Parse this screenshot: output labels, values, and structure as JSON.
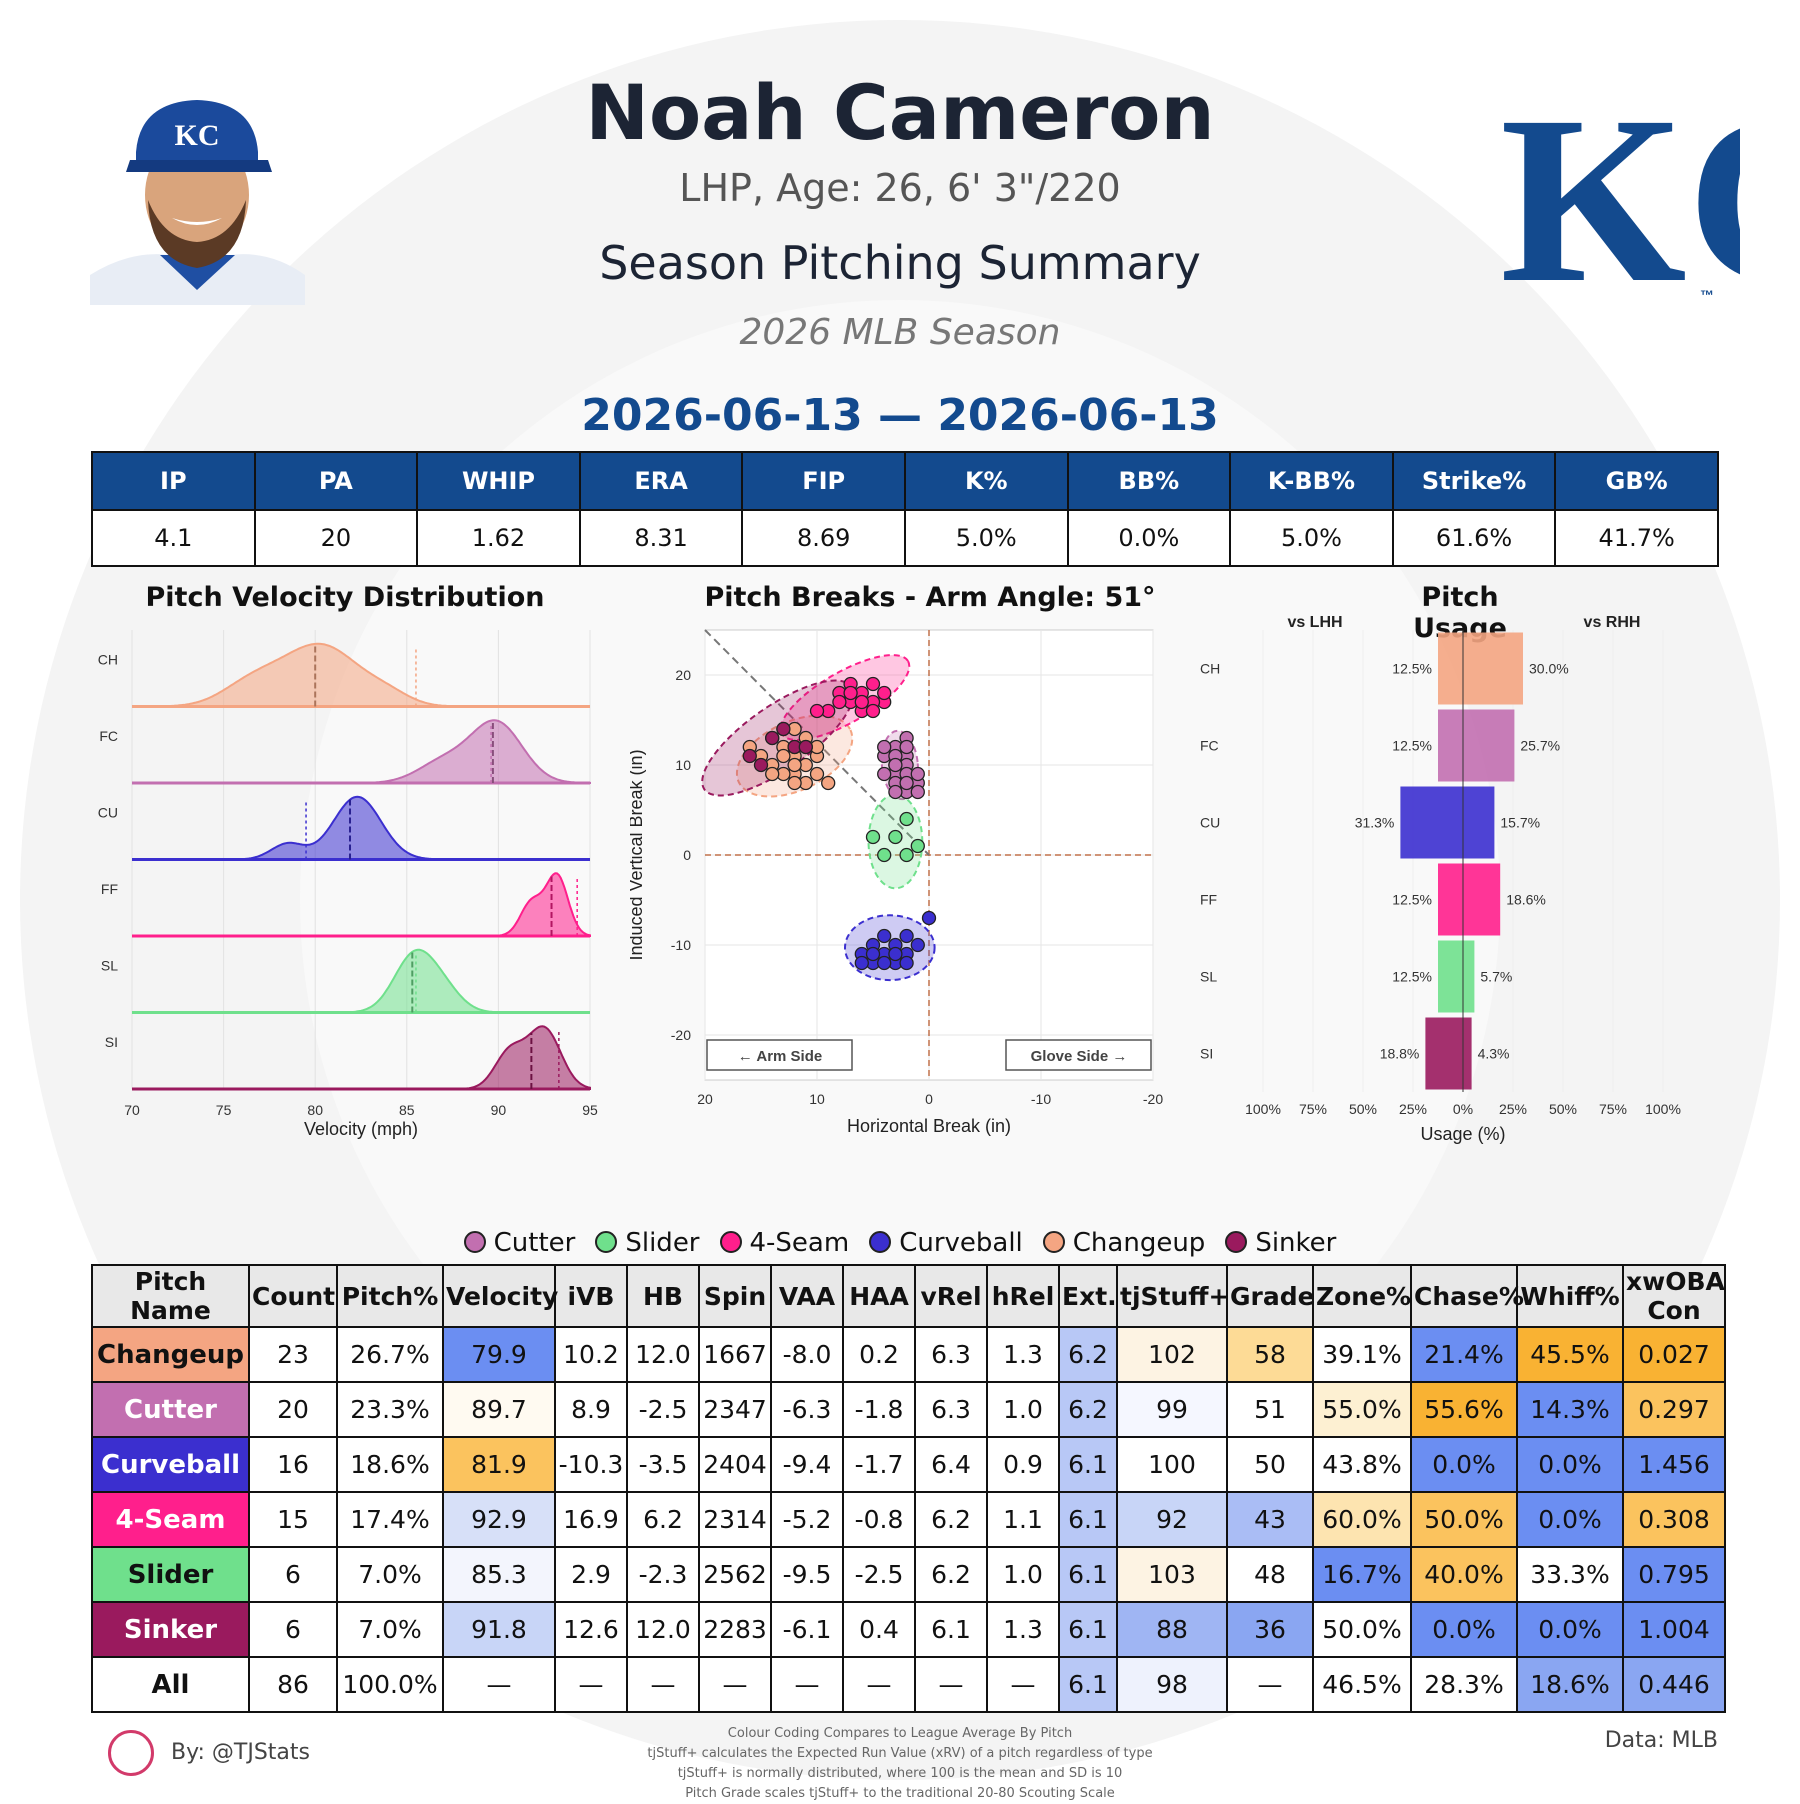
{
  "header": {
    "name": "Noah Cameron",
    "bio": "LHP, Age: 26, 6' 3\"/220",
    "subtitle": "Season Pitching Summary",
    "season": "2026 MLB Season",
    "date_range": "2026-06-13 — 2026-06-13",
    "team_logo": "KC",
    "team_logo_mark": "™",
    "team_color": "#134a8e"
  },
  "summary": {
    "headers": [
      "IP",
      "PA",
      "WHIP",
      "ERA",
      "FIP",
      "K%",
      "BB%",
      "K-BB%",
      "Strike%",
      "GB%"
    ],
    "values": [
      "4.1",
      "20",
      "1.62",
      "8.31",
      "8.69",
      "5.0%",
      "0.0%",
      "5.0%",
      "61.6%",
      "41.7%"
    ]
  },
  "pitch_colors": {
    "CH": "#f4a582",
    "FC": "#c26fb0",
    "CU": "#3b2fcf",
    "FF": "#ff1f8c",
    "SL": "#6fe08c",
    "SI": "#9a1a5e"
  },
  "chart_data": [
    {
      "type": "area",
      "title": "Pitch Velocity Distribution",
      "xlabel": "Velocity (mph)",
      "xlim": [
        70,
        95
      ],
      "xticks": [
        "70",
        "75",
        "80",
        "85",
        "90",
        "95"
      ],
      "series": [
        {
          "name": "CH",
          "mean": 80.0,
          "league_mean": 85.5,
          "peaks": [
            [
              76.5,
              0.35,
              1.6
            ],
            [
              80.3,
              1.0,
              2.1
            ],
            [
              84.0,
              0.15,
              1.2
            ]
          ]
        },
        {
          "name": "FC",
          "mean": 89.7,
          "league_mean": 89.6,
          "peaks": [
            [
              87.0,
              0.35,
              1.4
            ],
            [
              89.9,
              1.0,
              1.4
            ]
          ]
        },
        {
          "name": "CU",
          "mean": 81.9,
          "league_mean": 79.5,
          "peaks": [
            [
              78.5,
              0.25,
              0.9
            ],
            [
              82.3,
              1.0,
              1.3
            ]
          ]
        },
        {
          "name": "FF",
          "mean": 92.9,
          "league_mean": 94.3,
          "peaks": [
            [
              91.8,
              0.55,
              0.6
            ],
            [
              93.2,
              1.0,
              0.6
            ]
          ]
        },
        {
          "name": "SL",
          "mean": 85.3,
          "league_mean": 85.5,
          "peaks": [
            [
              85.4,
              1.0,
              1.1
            ],
            [
              87.0,
              0.35,
              1.0
            ]
          ]
        },
        {
          "name": "SI",
          "mean": 91.8,
          "league_mean": 93.3,
          "peaks": [
            [
              90.6,
              0.6,
              0.8
            ],
            [
              92.5,
              1.0,
              0.9
            ]
          ]
        }
      ]
    },
    {
      "type": "scatter",
      "title": "Pitch Breaks - Arm Angle: 51°",
      "xlabel": "Horizontal Break (in)",
      "ylabel": "Induced Vertical Break (in)",
      "xlim": [
        20,
        -20
      ],
      "ylim": [
        -25,
        25
      ],
      "xticks": [
        "20",
        "10",
        "0",
        "-10",
        "-20"
      ],
      "yticks": [
        "20",
        "10",
        "0",
        "-10",
        "-20"
      ],
      "arm_side_label": "← Arm Side",
      "glove_side_label": "Glove Side →",
      "series": [
        {
          "name": "CH",
          "ellipse": [
            12,
            11,
            5.5,
            3.8,
            -25
          ],
          "points": [
            [
              13,
              12
            ],
            [
              12,
              11
            ],
            [
              11,
              13
            ],
            [
              14,
              10
            ],
            [
              10,
              11
            ],
            [
              12,
              9
            ],
            [
              13,
              14
            ],
            [
              11,
              10
            ],
            [
              15,
              11
            ],
            [
              12,
              12
            ],
            [
              10,
              9
            ],
            [
              14,
              13
            ],
            [
              11,
              8
            ],
            [
              13,
              9
            ],
            [
              12,
              10
            ],
            [
              16,
              12
            ],
            [
              10,
              12
            ],
            [
              9,
              8
            ],
            [
              13,
              11
            ],
            [
              12,
              14
            ],
            [
              11,
              12
            ],
            [
              14,
              9
            ],
            [
              12,
              8
            ]
          ]
        },
        {
          "name": "FC",
          "ellipse": [
            2.6,
            10,
            1.6,
            3.8,
            -5
          ],
          "points": [
            [
              2,
              13
            ],
            [
              3,
              12
            ],
            [
              2,
              11
            ],
            [
              3,
              10
            ],
            [
              2,
              10
            ],
            [
              3,
              9
            ],
            [
              2,
              9
            ],
            [
              1,
              8
            ],
            [
              3,
              8
            ],
            [
              2,
              7
            ],
            [
              4,
              11
            ],
            [
              3,
              11
            ],
            [
              2,
              12
            ],
            [
              1,
              9
            ],
            [
              3,
              7
            ],
            [
              4,
              9
            ],
            [
              2,
              8
            ],
            [
              3,
              10
            ],
            [
              4,
              12
            ],
            [
              1,
              7
            ]
          ]
        },
        {
          "name": "CU",
          "ellipse": [
            3.5,
            -10.3,
            4.0,
            3.6,
            0
          ],
          "points": [
            [
              0,
              -7
            ],
            [
              2,
              -9
            ],
            [
              3,
              -10
            ],
            [
              4,
              -11
            ],
            [
              5,
              -10
            ],
            [
              6,
              -11
            ],
            [
              3,
              -12
            ],
            [
              2,
              -11
            ],
            [
              4,
              -9
            ],
            [
              5,
              -12
            ],
            [
              6,
              -12
            ],
            [
              1,
              -10
            ],
            [
              3,
              -11
            ],
            [
              4,
              -12
            ],
            [
              2,
              -12
            ],
            [
              5,
              -11
            ]
          ]
        },
        {
          "name": "FF",
          "ellipse": [
            7.5,
            17.5,
            6.5,
            2.8,
            -30
          ],
          "points": [
            [
              6,
              18
            ],
            [
              7,
              17
            ],
            [
              5,
              19
            ],
            [
              8,
              18
            ],
            [
              4,
              17
            ],
            [
              6,
              16
            ],
            [
              9,
              16
            ],
            [
              5,
              17
            ],
            [
              7,
              19
            ],
            [
              4,
              18
            ],
            [
              8,
              17
            ],
            [
              6,
              17
            ],
            [
              10,
              16
            ],
            [
              5,
              16
            ],
            [
              7,
              18
            ]
          ]
        },
        {
          "name": "SL",
          "ellipse": [
            3,
            1.5,
            2.4,
            5.2,
            0
          ],
          "points": [
            [
              2,
              4
            ],
            [
              3,
              2
            ],
            [
              1,
              1
            ],
            [
              4,
              0
            ],
            [
              5,
              2
            ],
            [
              2,
              0
            ]
          ]
        },
        {
          "name": "SI",
          "ellipse": [
            13.5,
            13,
            8,
            3.5,
            -35
          ],
          "points": [
            [
              16,
              11
            ],
            [
              14,
              13
            ],
            [
              12,
              12
            ],
            [
              15,
              10
            ],
            [
              13,
              14
            ],
            [
              11,
              12
            ]
          ]
        }
      ]
    },
    {
      "type": "bar",
      "title": "Pitch Usage",
      "xlabel": "Usage (%)",
      "left_label": "vs LHH",
      "right_label": "vs RHH",
      "categories": [
        "CH",
        "FC",
        "CU",
        "FF",
        "SL",
        "SI"
      ],
      "xticks": [
        "100%",
        "75%",
        "50%",
        "25%",
        "0%",
        "25%",
        "50%",
        "75%",
        "100%"
      ],
      "series": [
        {
          "name": "vs LHH",
          "values": [
            12.5,
            12.5,
            31.3,
            12.5,
            12.5,
            18.8
          ],
          "labels": [
            "12.5%",
            "12.5%",
            "31.3%",
            "12.5%",
            "12.5%",
            "18.8%"
          ]
        },
        {
          "name": "vs RHH",
          "values": [
            30.0,
            25.7,
            15.7,
            18.6,
            5.7,
            4.3
          ],
          "labels": [
            "30.0%",
            "25.7%",
            "15.7%",
            "18.6%",
            "5.7%",
            "4.3%"
          ]
        }
      ]
    },
    {
      "type": "table",
      "columns": [
        "Pitch Name",
        "Count",
        "Pitch%",
        "Velocity",
        "iVB",
        "HB",
        "Spin",
        "VAA",
        "HAA",
        "vRel",
        "hRel",
        "Ext.",
        "tjStuff+",
        "Grade",
        "Zone%",
        "Chase%",
        "Whiff%",
        "xwOBA Con"
      ],
      "rows": [
        {
          "name": "Changeup",
          "cells": [
            "23",
            "26.7%",
            "79.9",
            "10.2",
            "12.0",
            "1667",
            "-8.0",
            "0.2",
            "6.3",
            "1.3",
            "6.2",
            "102",
            "58",
            "39.1%",
            "21.4%",
            "45.5%",
            "0.027"
          ],
          "bg": [
            "#ffffff",
            "#ffffff",
            "#6b8ef2",
            "#ffffff",
            "#ffffff",
            "#ffffff",
            "#ffffff",
            "#ffffff",
            "#ffffff",
            "#ffffff",
            "#b8c8f6",
            "#fdf3e3",
            "#fddb96",
            "#ffffff",
            "#6b8ef2",
            "#f9b233",
            "#f9b233"
          ]
        },
        {
          "name": "Cutter",
          "cells": [
            "20",
            "23.3%",
            "89.7",
            "8.9",
            "-2.5",
            "2347",
            "-6.3",
            "-1.8",
            "6.3",
            "1.0",
            "6.2",
            "99",
            "51",
            "55.0%",
            "55.6%",
            "14.3%",
            "0.297"
          ],
          "bg": [
            "#ffffff",
            "#ffffff",
            "#fffaf1",
            "#ffffff",
            "#ffffff",
            "#ffffff",
            "#ffffff",
            "#ffffff",
            "#ffffff",
            "#ffffff",
            "#b8c8f6",
            "#f5f7ff",
            "#ffffff",
            "#fdf0d2",
            "#f9b233",
            "#6b8ef2",
            "#fbc35e"
          ]
        },
        {
          "name": "Curveball",
          "cells": [
            "16",
            "18.6%",
            "81.9",
            "-10.3",
            "-3.5",
            "2404",
            "-9.4",
            "-1.7",
            "6.4",
            "0.9",
            "6.1",
            "100",
            "50",
            "43.8%",
            "0.0%",
            "0.0%",
            "1.456"
          ],
          "bg": [
            "#ffffff",
            "#ffffff",
            "#fbc35e",
            "#ffffff",
            "#ffffff",
            "#ffffff",
            "#ffffff",
            "#ffffff",
            "#ffffff",
            "#ffffff",
            "#b8c8f6",
            "#ffffff",
            "#ffffff",
            "#ffffff",
            "#6b8ef2",
            "#6b8ef2",
            "#6b8ef2"
          ]
        },
        {
          "name": "4-Seam",
          "cells": [
            "15",
            "17.4%",
            "92.9",
            "16.9",
            "6.2",
            "2314",
            "-5.2",
            "-0.8",
            "6.2",
            "1.1",
            "6.1",
            "92",
            "43",
            "60.0%",
            "50.0%",
            "0.0%",
            "0.308"
          ],
          "bg": [
            "#ffffff",
            "#ffffff",
            "#d7e0f8",
            "#ffffff",
            "#ffffff",
            "#ffffff",
            "#ffffff",
            "#ffffff",
            "#ffffff",
            "#ffffff",
            "#b8c8f6",
            "#c8d5f7",
            "#aabdf5",
            "#fde4b0",
            "#fbc35e",
            "#6b8ef2",
            "#fbc35e"
          ]
        },
        {
          "name": "Slider",
          "cells": [
            "6",
            "7.0%",
            "85.3",
            "2.9",
            "-2.3",
            "2562",
            "-9.5",
            "-2.5",
            "6.2",
            "1.0",
            "6.1",
            "103",
            "48",
            "16.7%",
            "40.0%",
            "33.3%",
            "0.795"
          ],
          "bg": [
            "#ffffff",
            "#ffffff",
            "#f3f5fd",
            "#ffffff",
            "#ffffff",
            "#ffffff",
            "#ffffff",
            "#ffffff",
            "#ffffff",
            "#ffffff",
            "#b8c8f6",
            "#fdf3e3",
            "#ffffff",
            "#6b8ef2",
            "#fbc35e",
            "#ffffff",
            "#6b8ef2"
          ]
        },
        {
          "name": "Sinker",
          "cells": [
            "6",
            "7.0%",
            "91.8",
            "12.6",
            "12.0",
            "2283",
            "-6.1",
            "0.4",
            "6.1",
            "1.3",
            "6.1",
            "88",
            "36",
            "50.0%",
            "0.0%",
            "0.0%",
            "1.004"
          ],
          "bg": [
            "#ffffff",
            "#ffffff",
            "#c8d5f7",
            "#ffffff",
            "#ffffff",
            "#ffffff",
            "#ffffff",
            "#ffffff",
            "#ffffff",
            "#ffffff",
            "#b8c8f6",
            "#9fb5f3",
            "#8aa6f2",
            "#ffffff",
            "#6b8ef2",
            "#6b8ef2",
            "#6b8ef2"
          ]
        },
        {
          "name": "All",
          "cells": [
            "86",
            "100.0%",
            "—",
            "—",
            "—",
            "—",
            "—",
            "—",
            "—",
            "—",
            "6.1",
            "98",
            "—",
            "46.5%",
            "28.3%",
            "18.6%",
            "0.446"
          ],
          "bg": [
            "#ffffff",
            "#ffffff",
            "#ffffff",
            "#ffffff",
            "#ffffff",
            "#ffffff",
            "#ffffff",
            "#ffffff",
            "#ffffff",
            "#ffffff",
            "#b8c8f6",
            "#eef2fd",
            "#ffffff",
            "#ffffff",
            "#ffffff",
            "#8aa6f2",
            "#8aa6f2"
          ]
        }
      ],
      "name_styles": {
        "Changeup": {
          "bg": "#f4a582",
          "fg": "#111111"
        },
        "Cutter": {
          "bg": "#c26fb0",
          "fg": "#ffffff"
        },
        "Curveball": {
          "bg": "#3b2fcf",
          "fg": "#ffffff"
        },
        "4-Seam": {
          "bg": "#ff1f8c",
          "fg": "#ffffff"
        },
        "Slider": {
          "bg": "#6fe08c",
          "fg": "#111111"
        },
        "Sinker": {
          "bg": "#9a1a5e",
          "fg": "#ffffff"
        },
        "All": {
          "bg": "#ffffff",
          "fg": "#111111"
        }
      }
    }
  ],
  "legend": [
    {
      "label": "Cutter",
      "color": "#c26fb0"
    },
    {
      "label": "Slider",
      "color": "#6fe08c"
    },
    {
      "label": "4-Seam",
      "color": "#ff1f8c"
    },
    {
      "label": "Curveball",
      "color": "#3b2fcf"
    },
    {
      "label": "Changeup",
      "color": "#f4a582"
    },
    {
      "label": "Sinker",
      "color": "#9a1a5e"
    }
  ],
  "footer": {
    "byline": "By: @TJStats",
    "data_source": "Data: MLB",
    "notes": [
      "Colour Coding Compares to League Average By Pitch",
      "tjStuff+ calculates the Expected Run Value (xRV) of a pitch regardless of type",
      "tjStuff+ is normally distributed, where 100 is the mean and SD is 10",
      "Pitch Grade scales tjStuff+ to the traditional 20-80 Scouting Scale"
    ]
  }
}
